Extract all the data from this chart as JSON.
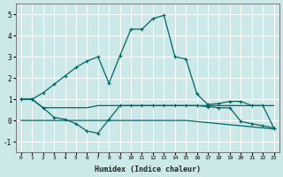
{
  "xlabel": "Humidex (Indice chaleur)",
  "xlim": [
    -0.5,
    23.5
  ],
  "ylim": [
    -1.5,
    5.5
  ],
  "yticks": [
    -1,
    0,
    1,
    2,
    3,
    4,
    5
  ],
  "xticks": [
    0,
    1,
    2,
    3,
    4,
    5,
    6,
    7,
    8,
    9,
    10,
    11,
    12,
    13,
    14,
    15,
    16,
    17,
    18,
    19,
    20,
    21,
    22,
    23
  ],
  "bg_color": "#cce8e8",
  "grid_color": "#ffffff",
  "line_color": "#006666",
  "lines": [
    {
      "x": [
        0,
        1,
        2,
        3,
        4,
        5,
        6,
        7,
        8,
        9,
        10,
        11,
        12,
        13,
        14,
        15,
        16,
        17,
        18,
        19,
        20,
        21,
        22,
        23
      ],
      "y": [
        1.0,
        1.0,
        1.3,
        1.7,
        2.1,
        2.5,
        2.8,
        3.0,
        1.75,
        3.05,
        4.3,
        4.3,
        4.8,
        4.95,
        3.0,
        2.9,
        1.25,
        0.75,
        0.8,
        0.9,
        0.9,
        0.7,
        0.7,
        -0.35
      ],
      "marker": "+"
    },
    {
      "x": [
        0,
        1,
        2,
        3,
        4,
        5,
        6,
        7,
        8,
        9,
        10,
        11,
        12,
        13,
        14,
        15,
        16,
        17,
        18,
        19,
        20,
        21,
        22,
        23
      ],
      "y": [
        1.0,
        1.0,
        0.6,
        0.6,
        0.6,
        0.6,
        0.6,
        0.7,
        0.7,
        0.7,
        0.7,
        0.7,
        0.7,
        0.7,
        0.7,
        0.7,
        0.7,
        0.7,
        0.7,
        0.7,
        0.7,
        0.7,
        0.7,
        0.7
      ],
      "marker": null
    },
    {
      "x": [
        0,
        1,
        2,
        3,
        4,
        5,
        6,
        7,
        8,
        9,
        10,
        11,
        12,
        13,
        14,
        15,
        16,
        17,
        18,
        19,
        20,
        21,
        22,
        23
      ],
      "y": [
        1.0,
        1.0,
        0.6,
        0.15,
        0.05,
        -0.15,
        -0.5,
        -0.6,
        0.05,
        0.7,
        0.7,
        0.7,
        0.7,
        0.7,
        0.7,
        0.7,
        0.7,
        0.65,
        0.6,
        0.6,
        -0.05,
        -0.15,
        -0.25,
        -0.35
      ],
      "marker": "+"
    },
    {
      "x": [
        0,
        1,
        2,
        3,
        4,
        5,
        6,
        7,
        8,
        9,
        10,
        11,
        12,
        13,
        14,
        15,
        16,
        17,
        18,
        19,
        20,
        21,
        22,
        23
      ],
      "y": [
        0.0,
        0.0,
        0.0,
        0.0,
        0.0,
        0.0,
        0.0,
        0.0,
        0.0,
        0.0,
        0.0,
        0.0,
        0.0,
        0.0,
        0.0,
        0.0,
        -0.05,
        -0.1,
        -0.15,
        -0.2,
        -0.25,
        -0.3,
        -0.35,
        -0.4
      ],
      "marker": null
    }
  ]
}
